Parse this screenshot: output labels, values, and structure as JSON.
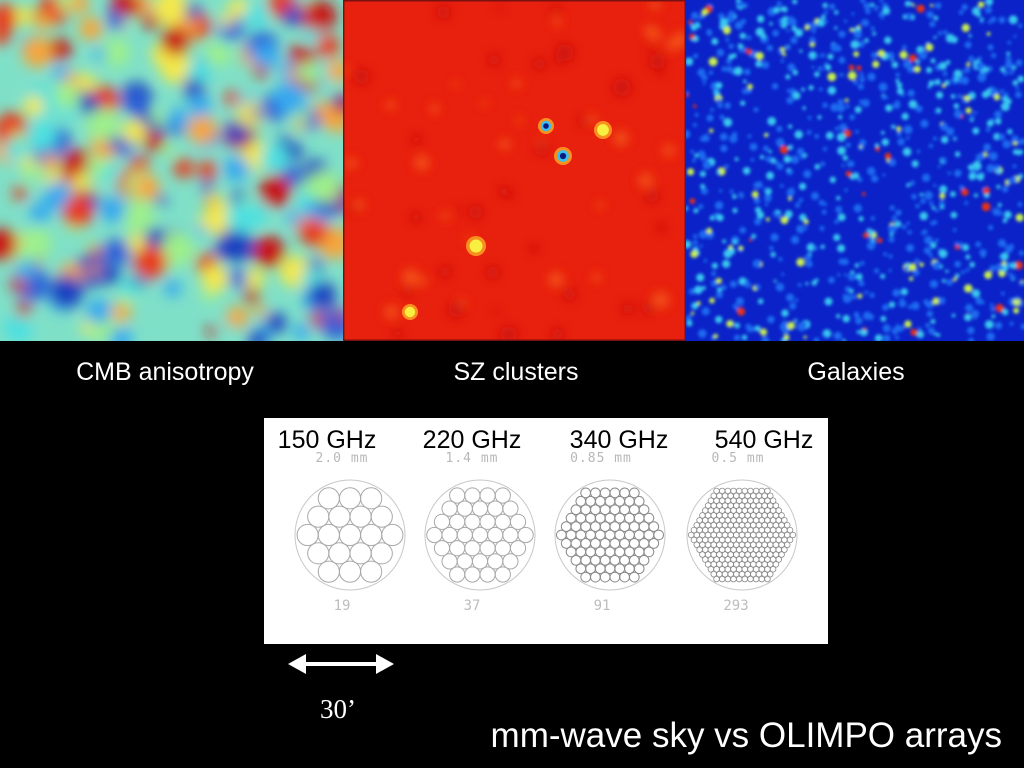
{
  "maps": [
    {
      "id": "cmb",
      "label": "CMB anisotropy"
    },
    {
      "id": "sz",
      "label": "SZ clusters"
    },
    {
      "id": "gal",
      "label": "Galaxies"
    }
  ],
  "arrays": [
    {
      "frequency": "150 GHz",
      "pixel_size": "2.0 mm",
      "detectors": "19",
      "rings": 2
    },
    {
      "frequency": "220 GHz",
      "pixel_size": "1.4 mm",
      "detectors": "37",
      "rings": 3
    },
    {
      "frequency": "340 GHz",
      "pixel_size": "0.85 mm",
      "detectors": "91",
      "rings": 5
    },
    {
      "frequency": "540 GHz",
      "pixel_size": "0.5 mm",
      "detectors": "293",
      "rings": 9
    }
  ],
  "scale_bar": {
    "label": "30’"
  },
  "title": "mm-wave sky vs OLIMPO arrays"
}
